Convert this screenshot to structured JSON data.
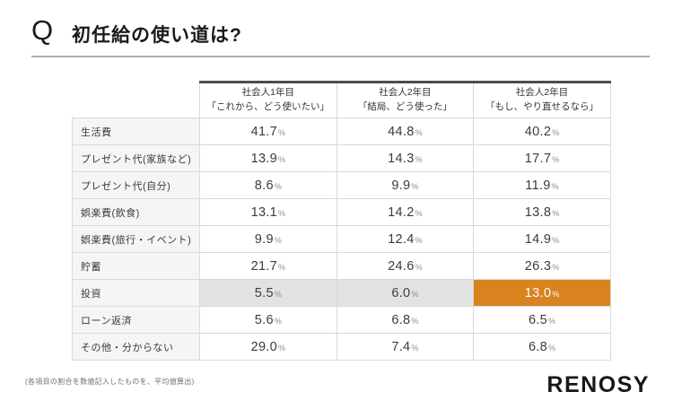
{
  "page": {
    "q_label": "Q",
    "title": "初任給の使い道は?",
    "footnote": "(各項目の割合を数値記入したものを、平均値算出)",
    "logo_text": "RENOSY"
  },
  "colors": {
    "accent_orange": "#d9831f",
    "highlight_gray": "#e2e2e2",
    "label_bg": "#f5f5f5",
    "border": "#d9d9d9",
    "header_top_border": "#4d4d4d"
  },
  "chart_data": {
    "type": "table",
    "title": "初任給の使い道は?",
    "unit": "%",
    "columns": [
      {
        "line1": "社会人1年目",
        "line2": "「これから、どう使いたい」"
      },
      {
        "line1": "社会人2年目",
        "line2": "「結局、どう使った」"
      },
      {
        "line1": "社会人2年目",
        "line2": "「もし、やり直せるなら」"
      }
    ],
    "rows": [
      {
        "label": "生活費",
        "values": [
          "41.7",
          "44.8",
          "40.2"
        ],
        "emphasized": false
      },
      {
        "label": "プレゼント代(家族など)",
        "values": [
          "13.9",
          "14.3",
          "17.7"
        ],
        "emphasized": false
      },
      {
        "label": "プレゼント代(自分)",
        "values": [
          "8.6",
          "9.9",
          "11.9"
        ],
        "emphasized": false
      },
      {
        "label": "娯楽費(飲食)",
        "values": [
          "13.1",
          "14.2",
          "13.8"
        ],
        "emphasized": false
      },
      {
        "label": "娯楽費(旅行・イベント)",
        "values": [
          "9.9",
          "12.4",
          "14.9"
        ],
        "emphasized": false
      },
      {
        "label": "貯蓄",
        "values": [
          "21.7",
          "24.6",
          "26.3"
        ],
        "emphasized": false
      },
      {
        "label": "投資",
        "values": [
          "5.5",
          "6.0",
          "13.0"
        ],
        "emphasized": true
      },
      {
        "label": "ローン返済",
        "values": [
          "5.6",
          "6.8",
          "6.5"
        ],
        "emphasized": false
      },
      {
        "label": "その他・分からない",
        "values": [
          "29.0",
          "7.4",
          "6.8"
        ],
        "emphasized": false
      }
    ],
    "emphasis": {
      "row_label": "投資",
      "emphasized_column_index": 2,
      "style": "orange-highlight"
    }
  }
}
